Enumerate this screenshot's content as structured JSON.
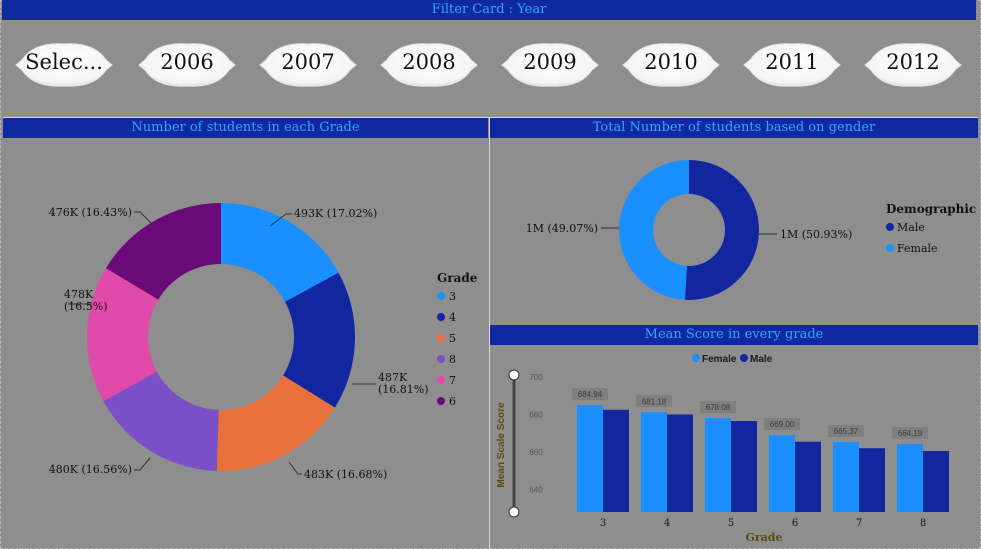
{
  "filter": {
    "title": "Filter Card : Year",
    "items": [
      "Selec...",
      "2006",
      "2007",
      "2008",
      "2009",
      "2010",
      "2011",
      "2012"
    ]
  },
  "colors": {
    "header_bg": "#1028a0",
    "header_text": "#2fa8ff",
    "background": "#8e8e8e",
    "male": "#1226a0",
    "female": "#1a8fff"
  },
  "chart_data": [
    {
      "type": "pie",
      "variant": "donut",
      "title": "Number of students in each Grade",
      "legend_title": "Grade",
      "legend_position": "right",
      "slices": [
        {
          "label": "3",
          "value": 493,
          "text": "493K (17.02%)",
          "color": "#1a8fff"
        },
        {
          "label": "4",
          "value": 487,
          "text": "487K (16.81%)",
          "color": "#1226a0"
        },
        {
          "label": "5",
          "value": 483,
          "text": "483K (16.68%)",
          "color": "#e8703a"
        },
        {
          "label": "8",
          "value": 480,
          "text": "480K (16.56%)",
          "color": "#7a4fc8"
        },
        {
          "label": "7",
          "value": 478,
          "text": "478K (16.5%)",
          "color": "#e04aa8"
        },
        {
          "label": "6",
          "value": 476,
          "text": "476K (16.43%)",
          "color": "#6a0a78"
        }
      ]
    },
    {
      "type": "pie",
      "variant": "donut",
      "title": "Total Number of students based on gender",
      "legend_title": "Demographic",
      "legend_position": "right",
      "slices": [
        {
          "label": "Male",
          "value": 50.93,
          "text": "1M (50.93%)",
          "color": "#1226a0"
        },
        {
          "label": "Female",
          "value": 49.07,
          "text": "1M (49.07%)",
          "color": "#1a8fff"
        }
      ]
    },
    {
      "type": "bar",
      "title": "Mean Score in every grade",
      "xlabel": "Grade",
      "ylabel": "Mean Scale Score",
      "legend_position": "top",
      "categories": [
        "3",
        "4",
        "5",
        "6",
        "7",
        "8"
      ],
      "ylim": [
        628,
        700
      ],
      "yticks": [
        "700",
        "680",
        "660",
        "640"
      ],
      "series": [
        {
          "name": "Female",
          "color": "#1a8fff",
          "values": [
            684.94,
            681.18,
            678.08,
            669.0,
            665.37,
            664.19
          ],
          "labels": [
            "684.94",
            "681.18",
            "678.08",
            "669.00",
            "665.37",
            "664.19"
          ]
        },
        {
          "name": "Male",
          "color": "#1226a0",
          "values": [
            682.5,
            680.0,
            676.5,
            665.5,
            662.0,
            660.5
          ]
        }
      ]
    }
  ]
}
